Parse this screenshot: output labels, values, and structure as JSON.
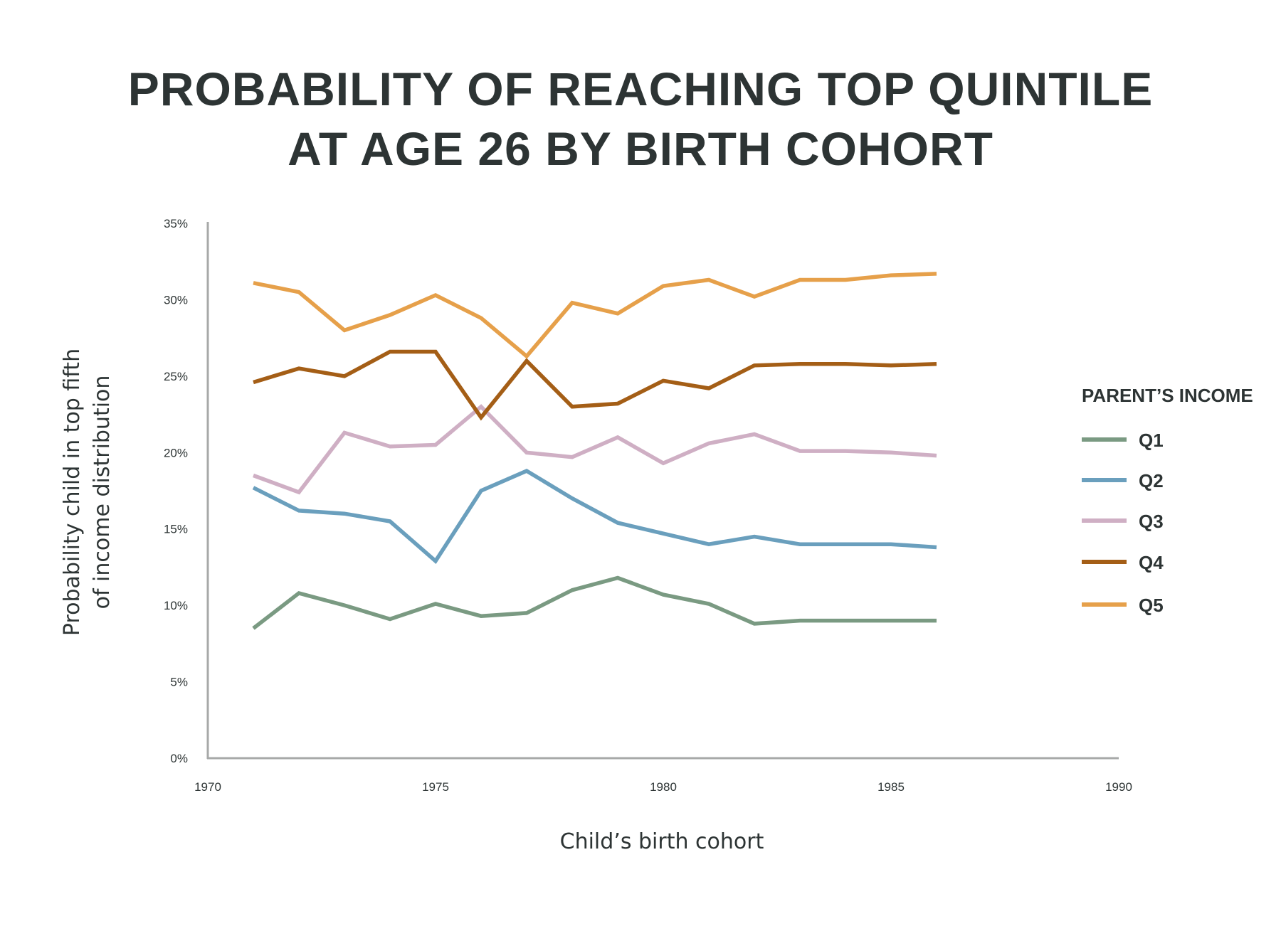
{
  "chart_data": {
    "type": "line",
    "title_lines": [
      "PROBABILITY OF REACHING TOP QUINTILE",
      "AT AGE 26 BY BIRTH COHORT"
    ],
    "xlabel": "Child’s birth cohort",
    "ylabel_lines": [
      "Probability child in top fifth",
      "of income distribution"
    ],
    "xlim": [
      1970,
      1990
    ],
    "ylim": [
      0,
      35
    ],
    "x_ticks": [
      1970,
      1975,
      1980,
      1985,
      1990
    ],
    "x_tick_labels": [
      "1970",
      "1975",
      "1980",
      "1985",
      "1990"
    ],
    "y_ticks": [
      0,
      5,
      10,
      15,
      20,
      25,
      30,
      35
    ],
    "y_tick_labels": [
      "0%",
      "5%",
      "10%",
      "15%",
      "20%",
      "25%",
      "30%",
      "35%"
    ],
    "grid": false,
    "legend_title": "PARENT’S INCOME",
    "legend_position": "right",
    "x": [
      1971,
      1972,
      1973,
      1974,
      1975,
      1976,
      1977,
      1978,
      1979,
      1980,
      1981,
      1982,
      1983,
      1984,
      1985,
      1986
    ],
    "series": [
      {
        "name": "Q1",
        "color": "#7a9a82",
        "values": [
          8.5,
          10.8,
          10.0,
          9.1,
          10.1,
          9.3,
          9.5,
          11.0,
          11.8,
          10.7,
          10.1,
          8.8,
          9.0,
          9.0,
          9.0,
          9.0
        ]
      },
      {
        "name": "Q2",
        "color": "#6a9fbd",
        "values": [
          17.7,
          16.2,
          16.0,
          15.5,
          12.9,
          17.5,
          18.8,
          17.0,
          15.4,
          14.7,
          14.0,
          14.5,
          14.0,
          14.0,
          14.0,
          13.8
        ]
      },
      {
        "name": "Q3",
        "color": "#cfafc4",
        "values": [
          18.5,
          17.4,
          21.3,
          20.4,
          20.5,
          23.0,
          20.0,
          19.7,
          21.0,
          19.3,
          20.6,
          21.2,
          20.1,
          20.1,
          20.0,
          19.8
        ]
      },
      {
        "name": "Q4",
        "color": "#a45e16",
        "values": [
          24.6,
          25.5,
          25.0,
          26.6,
          26.6,
          22.3,
          26.0,
          23.0,
          23.2,
          24.7,
          24.2,
          25.7,
          25.8,
          25.8,
          25.7,
          25.8
        ]
      },
      {
        "name": "Q5",
        "color": "#e6a04a",
        "values": [
          31.1,
          30.5,
          28.0,
          29.0,
          30.3,
          28.8,
          26.3,
          29.8,
          29.1,
          30.9,
          31.3,
          30.2,
          31.3,
          31.3,
          31.6,
          31.7
        ]
      }
    ]
  }
}
